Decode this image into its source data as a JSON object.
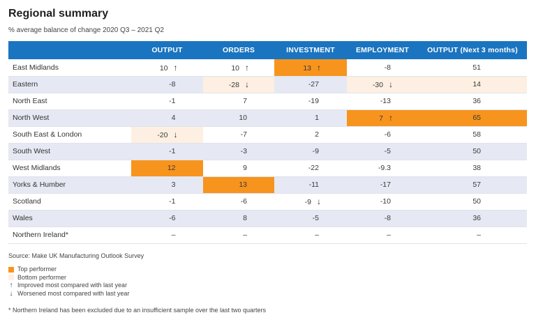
{
  "title": "Regional summary",
  "subtitle": "% average balance of change 2020 Q3 – 2021 Q2",
  "columns": [
    "",
    "OUTPUT",
    "ORDERS",
    "INVESTMENT",
    "EMPLOYMENT",
    "OUTPUT  (Next 3 months)"
  ],
  "rows": [
    {
      "region": "East Midlands",
      "cells": [
        {
          "v": "10",
          "arrow": "↑",
          "hl": ""
        },
        {
          "v": "10",
          "arrow": "↑",
          "hl": ""
        },
        {
          "v": "13",
          "arrow": "↑",
          "hl": "top"
        },
        {
          "v": "-8",
          "arrow": "",
          "hl": ""
        },
        {
          "v": "51",
          "arrow": "",
          "hl": ""
        }
      ]
    },
    {
      "region": "Eastern",
      "cells": [
        {
          "v": "-8",
          "arrow": "",
          "hl": ""
        },
        {
          "v": "-28",
          "arrow": "↓",
          "hl": "bottom"
        },
        {
          "v": "-27",
          "arrow": "",
          "hl": ""
        },
        {
          "v": "-30",
          "arrow": "↓",
          "hl": "bottom"
        },
        {
          "v": "14",
          "arrow": "",
          "hl": "bottom"
        }
      ]
    },
    {
      "region": "North East",
      "cells": [
        {
          "v": "-1",
          "arrow": "",
          "hl": ""
        },
        {
          "v": "7",
          "arrow": "",
          "hl": ""
        },
        {
          "v": "-19",
          "arrow": "",
          "hl": ""
        },
        {
          "v": "-13",
          "arrow": "",
          "hl": ""
        },
        {
          "v": "36",
          "arrow": "",
          "hl": ""
        }
      ]
    },
    {
      "region": "North West",
      "cells": [
        {
          "v": "4",
          "arrow": "",
          "hl": ""
        },
        {
          "v": "10",
          "arrow": "",
          "hl": ""
        },
        {
          "v": "1",
          "arrow": "",
          "hl": ""
        },
        {
          "v": "7",
          "arrow": "↑",
          "hl": "top"
        },
        {
          "v": "65",
          "arrow": "",
          "hl": "top"
        }
      ]
    },
    {
      "region": "South East & London",
      "cells": [
        {
          "v": "-20",
          "arrow": "↓",
          "hl": "bottom"
        },
        {
          "v": "-7",
          "arrow": "",
          "hl": ""
        },
        {
          "v": "2",
          "arrow": "",
          "hl": ""
        },
        {
          "v": "-6",
          "arrow": "",
          "hl": ""
        },
        {
          "v": "58",
          "arrow": "",
          "hl": ""
        }
      ]
    },
    {
      "region": "South West",
      "cells": [
        {
          "v": "-1",
          "arrow": "",
          "hl": ""
        },
        {
          "v": "-3",
          "arrow": "",
          "hl": ""
        },
        {
          "v": "-9",
          "arrow": "",
          "hl": ""
        },
        {
          "v": "-5",
          "arrow": "",
          "hl": ""
        },
        {
          "v": "50",
          "arrow": "",
          "hl": ""
        }
      ]
    },
    {
      "region": "West Midlands",
      "cells": [
        {
          "v": "12",
          "arrow": "",
          "hl": "top"
        },
        {
          "v": "9",
          "arrow": "",
          "hl": ""
        },
        {
          "v": "-22",
          "arrow": "",
          "hl": ""
        },
        {
          "v": "-9.3",
          "arrow": "",
          "hl": ""
        },
        {
          "v": "38",
          "arrow": "",
          "hl": ""
        }
      ]
    },
    {
      "region": "Yorks & Humber",
      "cells": [
        {
          "v": "3",
          "arrow": "",
          "hl": ""
        },
        {
          "v": "13",
          "arrow": "",
          "hl": "top"
        },
        {
          "v": "-11",
          "arrow": "",
          "hl": ""
        },
        {
          "v": "-17",
          "arrow": "",
          "hl": ""
        },
        {
          "v": "57",
          "arrow": "",
          "hl": ""
        }
      ]
    },
    {
      "region": "Scotland",
      "cells": [
        {
          "v": "-1",
          "arrow": "",
          "hl": ""
        },
        {
          "v": "-6",
          "arrow": "",
          "hl": ""
        },
        {
          "v": "-9",
          "arrow": "↓",
          "hl": ""
        },
        {
          "v": "-10",
          "arrow": "",
          "hl": ""
        },
        {
          "v": "50",
          "arrow": "",
          "hl": ""
        }
      ]
    },
    {
      "region": "Wales",
      "cells": [
        {
          "v": "-6",
          "arrow": "",
          "hl": ""
        },
        {
          "v": "8",
          "arrow": "",
          "hl": ""
        },
        {
          "v": "-5",
          "arrow": "",
          "hl": ""
        },
        {
          "v": "-8",
          "arrow": "",
          "hl": ""
        },
        {
          "v": "36",
          "arrow": "",
          "hl": ""
        }
      ]
    },
    {
      "region": "Northern Ireland*",
      "cells": [
        {
          "v": "–",
          "arrow": "",
          "hl": ""
        },
        {
          "v": "–",
          "arrow": "",
          "hl": ""
        },
        {
          "v": "–",
          "arrow": "",
          "hl": ""
        },
        {
          "v": "–",
          "arrow": "",
          "hl": ""
        },
        {
          "v": "–",
          "arrow": "",
          "hl": ""
        }
      ]
    }
  ],
  "source": "Source: Make UK Manufacturing Outlook Survey",
  "legend": {
    "top": "Top performer",
    "bottom": "Bottom performer",
    "improved": "Improved most compared with last year",
    "worsened": "Worsened most compared with last year",
    "improved_glyph": "↑",
    "worsened_glyph": "↓",
    "top_color": "#f7941d",
    "bottom_color": "#fdf0e2"
  },
  "footnote": "* Northern Ireland has been excluded due to an insufficient sample over the last two quarters"
}
